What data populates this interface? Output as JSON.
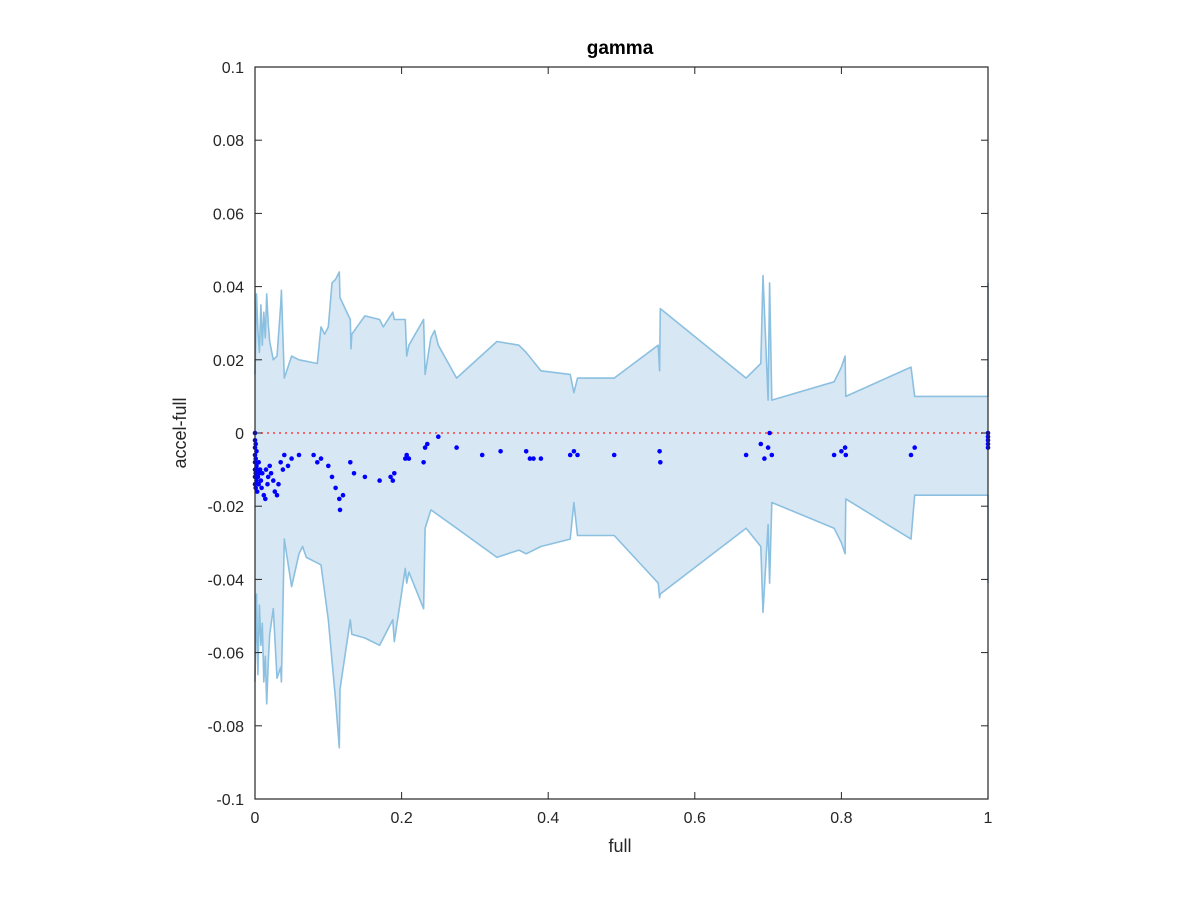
{
  "chart_data": {
    "type": "scatter",
    "title": "gamma",
    "xlabel": "full",
    "ylabel": "accel-full",
    "xlim": [
      0,
      1
    ],
    "ylim": [
      -0.1,
      0.1
    ],
    "xticks": [
      0,
      0.2,
      0.4,
      0.6,
      0.8,
      1
    ],
    "xtick_labels": [
      "0",
      "0.2",
      "0.4",
      "0.6",
      "0.8",
      "1"
    ],
    "yticks": [
      -0.1,
      -0.08,
      -0.06,
      -0.04,
      -0.02,
      0,
      0.02,
      0.04,
      0.06,
      0.08,
      0.1
    ],
    "ytick_labels": [
      "-0.1",
      "-0.08",
      "-0.06",
      "-0.04",
      "-0.02",
      "0",
      "0.02",
      "0.04",
      "0.06",
      "0.08",
      "0.1"
    ],
    "grid": false,
    "legend": "none",
    "colors": {
      "band_fill": "#d7e7f4",
      "band_edge": "#8cc0e0",
      "points": "#0000ff",
      "reference_line": "#ff3b3b",
      "axes": "#262626"
    },
    "reference_line": {
      "y": 0,
      "style": "dotted"
    },
    "band_upper": [
      [
        0,
        0.016
      ],
      [
        0.002,
        0.038
      ],
      [
        0.004,
        0.028
      ],
      [
        0.006,
        0.022
      ],
      [
        0.008,
        0.035
      ],
      [
        0.01,
        0.024
      ],
      [
        0.012,
        0.033
      ],
      [
        0.014,
        0.026
      ],
      [
        0.016,
        0.038
      ],
      [
        0.018,
        0.03
      ],
      [
        0.02,
        0.025
      ],
      [
        0.025,
        0.02
      ],
      [
        0.03,
        0.021
      ],
      [
        0.035,
        0.035
      ],
      [
        0.036,
        0.039
      ],
      [
        0.04,
        0.015
      ],
      [
        0.05,
        0.021
      ],
      [
        0.06,
        0.02
      ],
      [
        0.085,
        0.019
      ],
      [
        0.09,
        0.029
      ],
      [
        0.095,
        0.027
      ],
      [
        0.1,
        0.029
      ],
      [
        0.105,
        0.041
      ],
      [
        0.11,
        0.042
      ],
      [
        0.115,
        0.044
      ],
      [
        0.116,
        0.037
      ],
      [
        0.13,
        0.031
      ],
      [
        0.131,
        0.023
      ],
      [
        0.132,
        0.027
      ],
      [
        0.15,
        0.032
      ],
      [
        0.17,
        0.031
      ],
      [
        0.175,
        0.029
      ],
      [
        0.188,
        0.033
      ],
      [
        0.19,
        0.031
      ],
      [
        0.205,
        0.031
      ],
      [
        0.207,
        0.021
      ],
      [
        0.21,
        0.024
      ],
      [
        0.23,
        0.031
      ],
      [
        0.232,
        0.016
      ],
      [
        0.24,
        0.026
      ],
      [
        0.245,
        0.028
      ],
      [
        0.25,
        0.024
      ],
      [
        0.275,
        0.015
      ],
      [
        0.33,
        0.025
      ],
      [
        0.36,
        0.024
      ],
      [
        0.37,
        0.022
      ],
      [
        0.39,
        0.017
      ],
      [
        0.43,
        0.016
      ],
      [
        0.435,
        0.011
      ],
      [
        0.44,
        0.015
      ],
      [
        0.49,
        0.015
      ],
      [
        0.55,
        0.024
      ],
      [
        0.552,
        0.017
      ],
      [
        0.553,
        0.034
      ],
      [
        0.67,
        0.015
      ],
      [
        0.69,
        0.019
      ],
      [
        0.693,
        0.043
      ],
      [
        0.7,
        0.009
      ],
      [
        0.702,
        0.041
      ],
      [
        0.705,
        0.009
      ],
      [
        0.79,
        0.014
      ],
      [
        0.8,
        0.018
      ],
      [
        0.805,
        0.021
      ],
      [
        0.806,
        0.01
      ],
      [
        0.895,
        0.018
      ],
      [
        0.9,
        0.01
      ],
      [
        1.0,
        0.01
      ],
      [
        1.0,
        0.041
      ]
    ],
    "band_lower": [
      [
        0,
        -0.068
      ],
      [
        0.002,
        -0.044
      ],
      [
        0.004,
        -0.066
      ],
      [
        0.006,
        -0.047
      ],
      [
        0.008,
        -0.058
      ],
      [
        0.01,
        -0.052
      ],
      [
        0.012,
        -0.068
      ],
      [
        0.014,
        -0.061
      ],
      [
        0.016,
        -0.074
      ],
      [
        0.018,
        -0.063
      ],
      [
        0.02,
        -0.055
      ],
      [
        0.025,
        -0.048
      ],
      [
        0.03,
        -0.067
      ],
      [
        0.035,
        -0.064
      ],
      [
        0.036,
        -0.068
      ],
      [
        0.04,
        -0.029
      ],
      [
        0.05,
        -0.042
      ],
      [
        0.06,
        -0.033
      ],
      [
        0.065,
        -0.031
      ],
      [
        0.07,
        -0.034
      ],
      [
        0.09,
        -0.036
      ],
      [
        0.1,
        -0.051
      ],
      [
        0.11,
        -0.073
      ],
      [
        0.115,
        -0.086
      ],
      [
        0.116,
        -0.07
      ],
      [
        0.13,
        -0.051
      ],
      [
        0.132,
        -0.055
      ],
      [
        0.15,
        -0.056
      ],
      [
        0.17,
        -0.058
      ],
      [
        0.188,
        -0.051
      ],
      [
        0.19,
        -0.057
      ],
      [
        0.205,
        -0.037
      ],
      [
        0.207,
        -0.041
      ],
      [
        0.21,
        -0.038
      ],
      [
        0.23,
        -0.048
      ],
      [
        0.232,
        -0.026
      ],
      [
        0.24,
        -0.021
      ],
      [
        0.275,
        -0.026
      ],
      [
        0.33,
        -0.034
      ],
      [
        0.36,
        -0.032
      ],
      [
        0.37,
        -0.033
      ],
      [
        0.39,
        -0.031
      ],
      [
        0.43,
        -0.029
      ],
      [
        0.435,
        -0.019
      ],
      [
        0.44,
        -0.028
      ],
      [
        0.49,
        -0.028
      ],
      [
        0.55,
        -0.041
      ],
      [
        0.552,
        -0.045
      ],
      [
        0.553,
        -0.044
      ],
      [
        0.67,
        -0.026
      ],
      [
        0.69,
        -0.031
      ],
      [
        0.693,
        -0.049
      ],
      [
        0.7,
        -0.025
      ],
      [
        0.702,
        -0.041
      ],
      [
        0.705,
        -0.019
      ],
      [
        0.79,
        -0.026
      ],
      [
        0.8,
        -0.03
      ],
      [
        0.805,
        -0.033
      ],
      [
        0.806,
        -0.018
      ],
      [
        0.895,
        -0.029
      ],
      [
        0.9,
        -0.017
      ],
      [
        1.0,
        -0.017
      ],
      [
        1.0,
        -0.041
      ]
    ],
    "points": [
      [
        0.0,
        0.0
      ],
      [
        0.0,
        -0.002
      ],
      [
        0.0,
        -0.004
      ],
      [
        0.0,
        -0.006
      ],
      [
        0.0,
        -0.008
      ],
      [
        0.0,
        -0.01
      ],
      [
        0.0,
        -0.012
      ],
      [
        0.0,
        -0.014
      ],
      [
        0.001,
        -0.003
      ],
      [
        0.001,
        -0.007
      ],
      [
        0.001,
        -0.011
      ],
      [
        0.001,
        -0.015
      ],
      [
        0.002,
        -0.005
      ],
      [
        0.002,
        -0.009
      ],
      [
        0.002,
        -0.013
      ],
      [
        0.003,
        -0.01
      ],
      [
        0.003,
        -0.016
      ],
      [
        0.004,
        -0.012
      ],
      [
        0.005,
        -0.008
      ],
      [
        0.005,
        -0.014
      ],
      [
        0.006,
        -0.011
      ],
      [
        0.007,
        -0.01
      ],
      [
        0.008,
        -0.013
      ],
      [
        0.009,
        -0.015
      ],
      [
        0.01,
        -0.011
      ],
      [
        0.012,
        -0.017
      ],
      [
        0.014,
        -0.018
      ],
      [
        0.015,
        -0.01
      ],
      [
        0.017,
        -0.014
      ],
      [
        0.018,
        -0.012
      ],
      [
        0.02,
        -0.009
      ],
      [
        0.022,
        -0.011
      ],
      [
        0.025,
        -0.013
      ],
      [
        0.027,
        -0.016
      ],
      [
        0.03,
        -0.017
      ],
      [
        0.032,
        -0.014
      ],
      [
        0.035,
        -0.008
      ],
      [
        0.038,
        -0.01
      ],
      [
        0.04,
        -0.006
      ],
      [
        0.045,
        -0.009
      ],
      [
        0.05,
        -0.007
      ],
      [
        0.06,
        -0.006
      ],
      [
        0.08,
        -0.006
      ],
      [
        0.085,
        -0.008
      ],
      [
        0.09,
        -0.007
      ],
      [
        0.1,
        -0.009
      ],
      [
        0.105,
        -0.012
      ],
      [
        0.11,
        -0.015
      ],
      [
        0.115,
        -0.018
      ],
      [
        0.116,
        -0.021
      ],
      [
        0.12,
        -0.017
      ],
      [
        0.13,
        -0.008
      ],
      [
        0.135,
        -0.011
      ],
      [
        0.15,
        -0.012
      ],
      [
        0.17,
        -0.013
      ],
      [
        0.185,
        -0.012
      ],
      [
        0.188,
        -0.013
      ],
      [
        0.19,
        -0.011
      ],
      [
        0.205,
        -0.007
      ],
      [
        0.207,
        -0.006
      ],
      [
        0.21,
        -0.007
      ],
      [
        0.23,
        -0.008
      ],
      [
        0.232,
        -0.004
      ],
      [
        0.235,
        -0.003
      ],
      [
        0.25,
        -0.001
      ],
      [
        0.275,
        -0.004
      ],
      [
        0.31,
        -0.006
      ],
      [
        0.335,
        -0.005
      ],
      [
        0.37,
        -0.005
      ],
      [
        0.375,
        -0.007
      ],
      [
        0.38,
        -0.007
      ],
      [
        0.39,
        -0.007
      ],
      [
        0.43,
        -0.006
      ],
      [
        0.435,
        -0.005
      ],
      [
        0.44,
        -0.006
      ],
      [
        0.49,
        -0.006
      ],
      [
        0.552,
        -0.005
      ],
      [
        0.553,
        -0.008
      ],
      [
        0.67,
        -0.006
      ],
      [
        0.69,
        -0.003
      ],
      [
        0.695,
        -0.007
      ],
      [
        0.7,
        -0.004
      ],
      [
        0.702,
        0.0
      ],
      [
        0.705,
        -0.006
      ],
      [
        0.79,
        -0.006
      ],
      [
        0.8,
        -0.005
      ],
      [
        0.805,
        -0.004
      ],
      [
        0.806,
        -0.006
      ],
      [
        0.895,
        -0.006
      ],
      [
        0.9,
        -0.004
      ],
      [
        1.0,
        -0.001
      ],
      [
        1.0,
        -0.002
      ],
      [
        1.0,
        -0.003
      ],
      [
        1.0,
        -0.004
      ],
      [
        1.0,
        0.0
      ]
    ]
  }
}
